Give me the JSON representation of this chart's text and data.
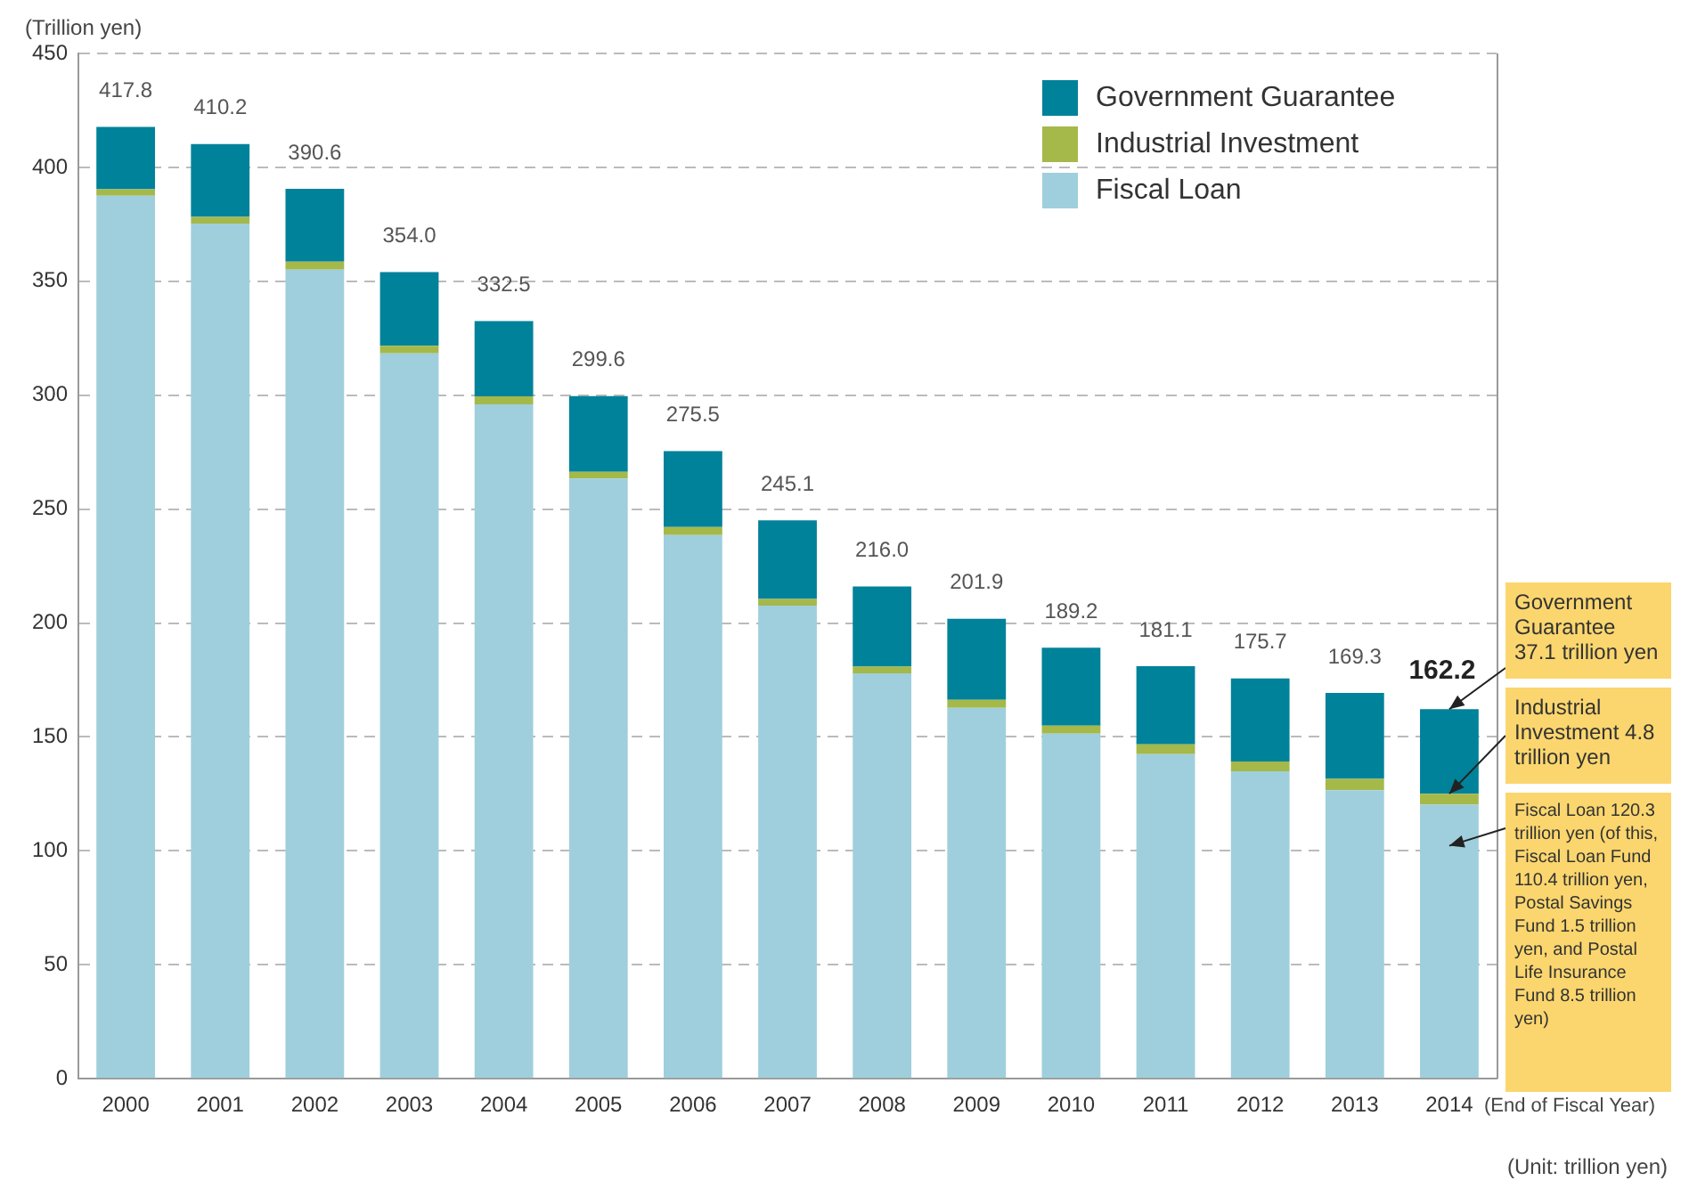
{
  "chart_data": {
    "type": "bar",
    "stacked": true,
    "ylabel": "(Trillion yen)",
    "xlabel": "(End of Fiscal Year)",
    "categories": [
      "2000",
      "2001",
      "2002",
      "2003",
      "2004",
      "2005",
      "2006",
      "2007",
      "2008",
      "2009",
      "2010",
      "2011",
      "2012",
      "2013",
      "2014"
    ],
    "series": [
      {
        "name": "Fiscal Loan",
        "color": "#9fcfdc",
        "values": [
          387.6,
          375.3,
          355.1,
          318.4,
          296.0,
          263.4,
          238.6,
          207.6,
          177.9,
          162.8,
          151.5,
          142.5,
          134.9,
          126.6,
          120.3
        ]
      },
      {
        "name": "Industrial Investment",
        "color": "#a5b84a",
        "values": [
          2.8,
          3.0,
          3.5,
          3.3,
          3.5,
          3.0,
          3.5,
          3.0,
          3.0,
          3.5,
          3.5,
          4.3,
          4.3,
          5.0,
          4.8
        ]
      },
      {
        "name": "Government Guarantee",
        "color": "#00829a",
        "values": [
          27.4,
          31.9,
          32.0,
          32.3,
          33.0,
          33.2,
          33.4,
          34.5,
          35.1,
          35.6,
          34.2,
          34.3,
          36.5,
          37.7,
          37.1
        ]
      }
    ],
    "totals": [
      "417.8",
      "410.2",
      "390.6",
      "354.0",
      "332.5",
      "299.6",
      "275.5",
      "245.1",
      "216.0",
      "201.9",
      "189.2",
      "181.1",
      "175.7",
      "169.3",
      "162.2"
    ],
    "ylim": [
      0,
      450
    ],
    "yticks": [
      0,
      50,
      100,
      150,
      200,
      250,
      300,
      350,
      400,
      450
    ],
    "grid": "y",
    "legend": "top right",
    "annotations": [
      {
        "text": "Government Guarantee 37.1 trillion yen",
        "x": "2014",
        "y": 162.2
      },
      {
        "text": "Industrial Investment 4.8 trillion yen",
        "x": "2014",
        "y": 125.1
      },
      "Fiscal Loan 120.3 trillion yen (of this, Fiscal Loan Fund 110.4 trillion yen, Postal Savings Fund 1.5 trillion yen, and Postal Life Insurance Fund 8.5 trillion yen)",
      "(Unit: trillion yen)"
    ]
  }
}
